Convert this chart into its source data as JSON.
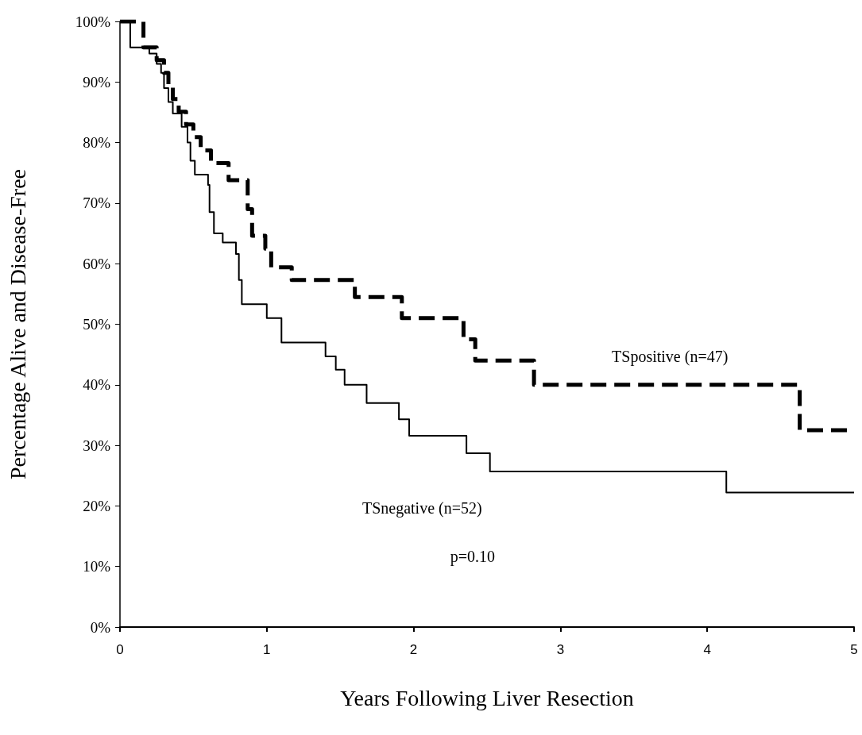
{
  "chart_data": {
    "type": "step",
    "xlabel": "Years Following Liver Resection",
    "ylabel": "Percentage Alive and Disease-Free",
    "xlim": [
      0,
      5
    ],
    "xticks": [
      0,
      1,
      2,
      3,
      4,
      5
    ],
    "ylim": [
      0,
      100
    ],
    "yticks": [
      {
        "value": 0,
        "label": "0%"
      },
      {
        "value": 10,
        "label": "10%"
      },
      {
        "value": 20,
        "label": "20%"
      },
      {
        "value": 30,
        "label": "30%"
      },
      {
        "value": 40,
        "label": "40%"
      },
      {
        "value": 50,
        "label": "50%"
      },
      {
        "value": 60,
        "label": "60%"
      },
      {
        "value": 70,
        "label": "70%"
      },
      {
        "value": 80,
        "label": "80%"
      },
      {
        "value": 90,
        "label": "90%"
      },
      {
        "value": 100,
        "label": "100%"
      }
    ],
    "grid": false,
    "legend": false,
    "marker": "none",
    "annotations": [
      "p=0.10"
    ],
    "series": [
      {
        "name": "TSpositive (n=47)",
        "color": "#000000",
        "line_style": "dashed",
        "x": [
          0,
          0.16,
          0.25,
          0.3,
          0.33,
          0.36,
          0.4,
          0.45,
          0.5,
          0.55,
          0.62,
          0.74,
          0.87,
          0.9,
          0.99,
          1.03,
          1.17,
          1.6,
          1.92,
          2.34,
          2.42,
          2.82,
          4.63,
          5
        ],
        "values": [
          100,
          95.7,
          93.6,
          91.5,
          89.4,
          87.2,
          85.1,
          83,
          80.9,
          78.7,
          76.6,
          73.8,
          69,
          64.6,
          62.5,
          59.4,
          57.3,
          54.5,
          51,
          47.5,
          44,
          40,
          32.5,
          32.5
        ]
      },
      {
        "name": "TSnegative (n=52)",
        "color": "#000000",
        "line_style": "solid",
        "x": [
          0,
          0.07,
          0.2,
          0.25,
          0.28,
          0.3,
          0.33,
          0.36,
          0.42,
          0.46,
          0.48,
          0.51,
          0.6,
          0.61,
          0.64,
          0.7,
          0.79,
          0.81,
          0.83,
          1.0,
          1.1,
          1.4,
          1.47,
          1.53,
          1.68,
          1.9,
          1.97,
          2.36,
          2.52,
          4.13,
          5
        ],
        "values": [
          100,
          95.7,
          94.7,
          93,
          91.5,
          89,
          86.7,
          84.8,
          82.6,
          80,
          77,
          74.7,
          73,
          68.5,
          65,
          63.5,
          61.6,
          57.3,
          53.3,
          51,
          47,
          44.7,
          42.5,
          40,
          37,
          34.3,
          31.6,
          28.7,
          25.7,
          22.2,
          22.2
        ]
      }
    ]
  }
}
